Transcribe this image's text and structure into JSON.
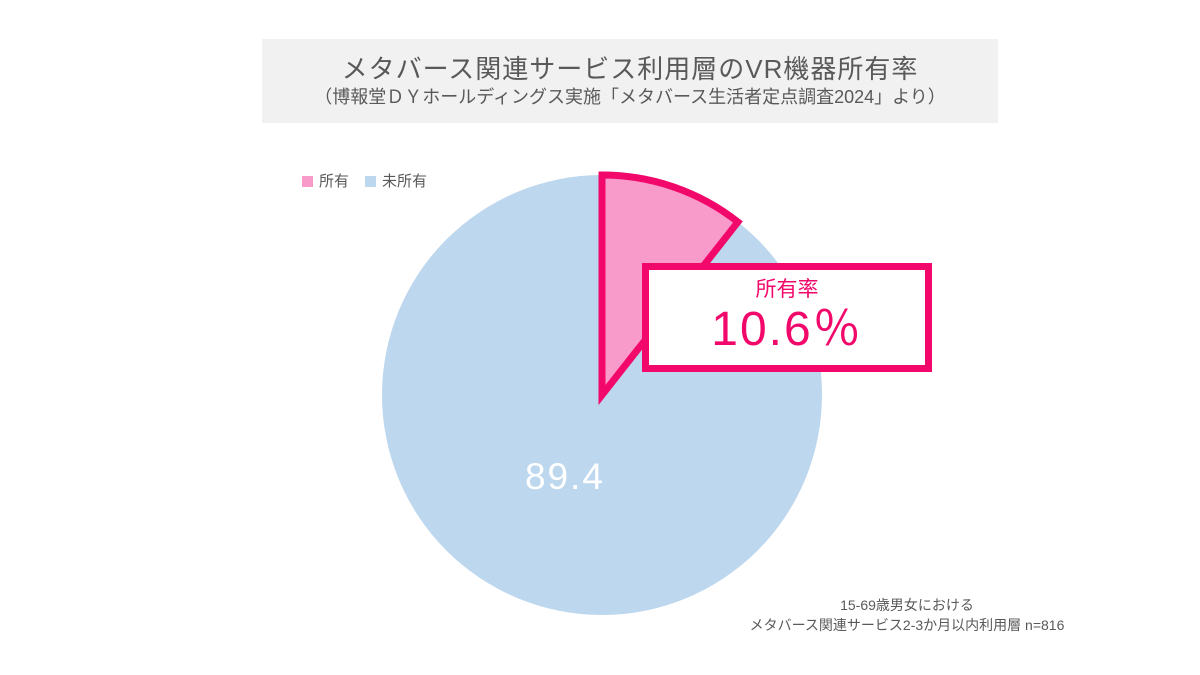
{
  "header": {
    "title": "メタバース関連サービス利用層のVR機器所有率",
    "subtitle": "（博報堂ＤＹホールディングス実施「メタバース生活者定点調査2024」より）"
  },
  "chart_data": {
    "type": "pie",
    "title": "メタバース関連サービス利用層のVR機器所有率",
    "unit": "%",
    "start_angle_deg": 0,
    "direction": "clockwise",
    "legend_position": "top-left",
    "slices": [
      {
        "label": "所有",
        "value": 10.6,
        "display_value": "10.6",
        "color": "#F99BCA",
        "border": "#F2076A"
      },
      {
        "label": "未所有",
        "value": 89.4,
        "display_value": "89.4",
        "color": "#BDD7EE"
      }
    ]
  },
  "callout": {
    "caption": "所有率",
    "value": "10.6％"
  },
  "footnote": {
    "line1": "15-69歳男女における",
    "line2": "メタバース関連サービス2-3か月以内利用層 n=816"
  },
  "colors": {
    "accent_pink": "#F2076A",
    "slice_pink": "#F99BCA",
    "slice_blue": "#BDD7EE",
    "band_gray": "#F1F1F1",
    "text_gray": "#595959",
    "label_white": "#FFFFFF"
  }
}
